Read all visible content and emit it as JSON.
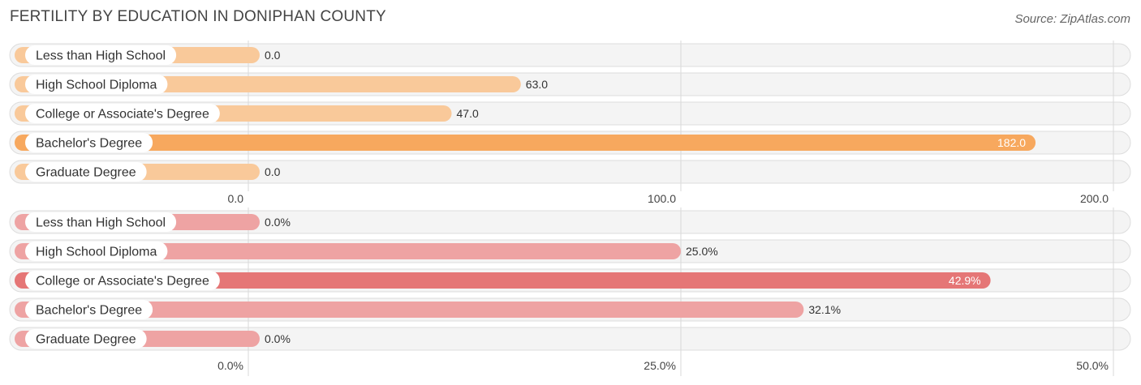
{
  "title": "FERTILITY BY EDUCATION IN DONIPHAN COUNTY",
  "source": "Source: ZipAtlas.com",
  "chart_data": [
    {
      "type": "bar",
      "orientation": "horizontal",
      "categories": [
        "Less than High School",
        "High School Diploma",
        "College or Associate's Degree",
        "Bachelor's Degree",
        "Graduate Degree"
      ],
      "values": [
        0.0,
        63.0,
        47.0,
        182.0,
        0.0
      ],
      "value_labels": [
        "0.0",
        "63.0",
        "47.0",
        "182.0",
        "0.0"
      ],
      "xlim": [
        0,
        200
      ],
      "ticks": [
        0,
        100,
        200
      ],
      "tick_labels": [
        "0.0",
        "100.0",
        "200.0"
      ],
      "color_normal": "#f9c99a",
      "color_highlight": "#f7a85e",
      "highlight_index": 3,
      "grid": true
    },
    {
      "type": "bar",
      "orientation": "horizontal",
      "categories": [
        "Less than High School",
        "High School Diploma",
        "College or Associate's Degree",
        "Bachelor's Degree",
        "Graduate Degree"
      ],
      "values": [
        0.0,
        25.0,
        42.9,
        32.1,
        0.0
      ],
      "value_labels": [
        "0.0%",
        "25.0%",
        "42.9%",
        "32.1%",
        "0.0%"
      ],
      "xlim": [
        0,
        50
      ],
      "ticks": [
        0,
        25,
        50
      ],
      "tick_labels": [
        "0.0%",
        "25.0%",
        "50.0%"
      ],
      "color_normal": "#eea3a3",
      "color_highlight": "#e57676",
      "highlight_index": 2,
      "grid": true
    }
  ]
}
